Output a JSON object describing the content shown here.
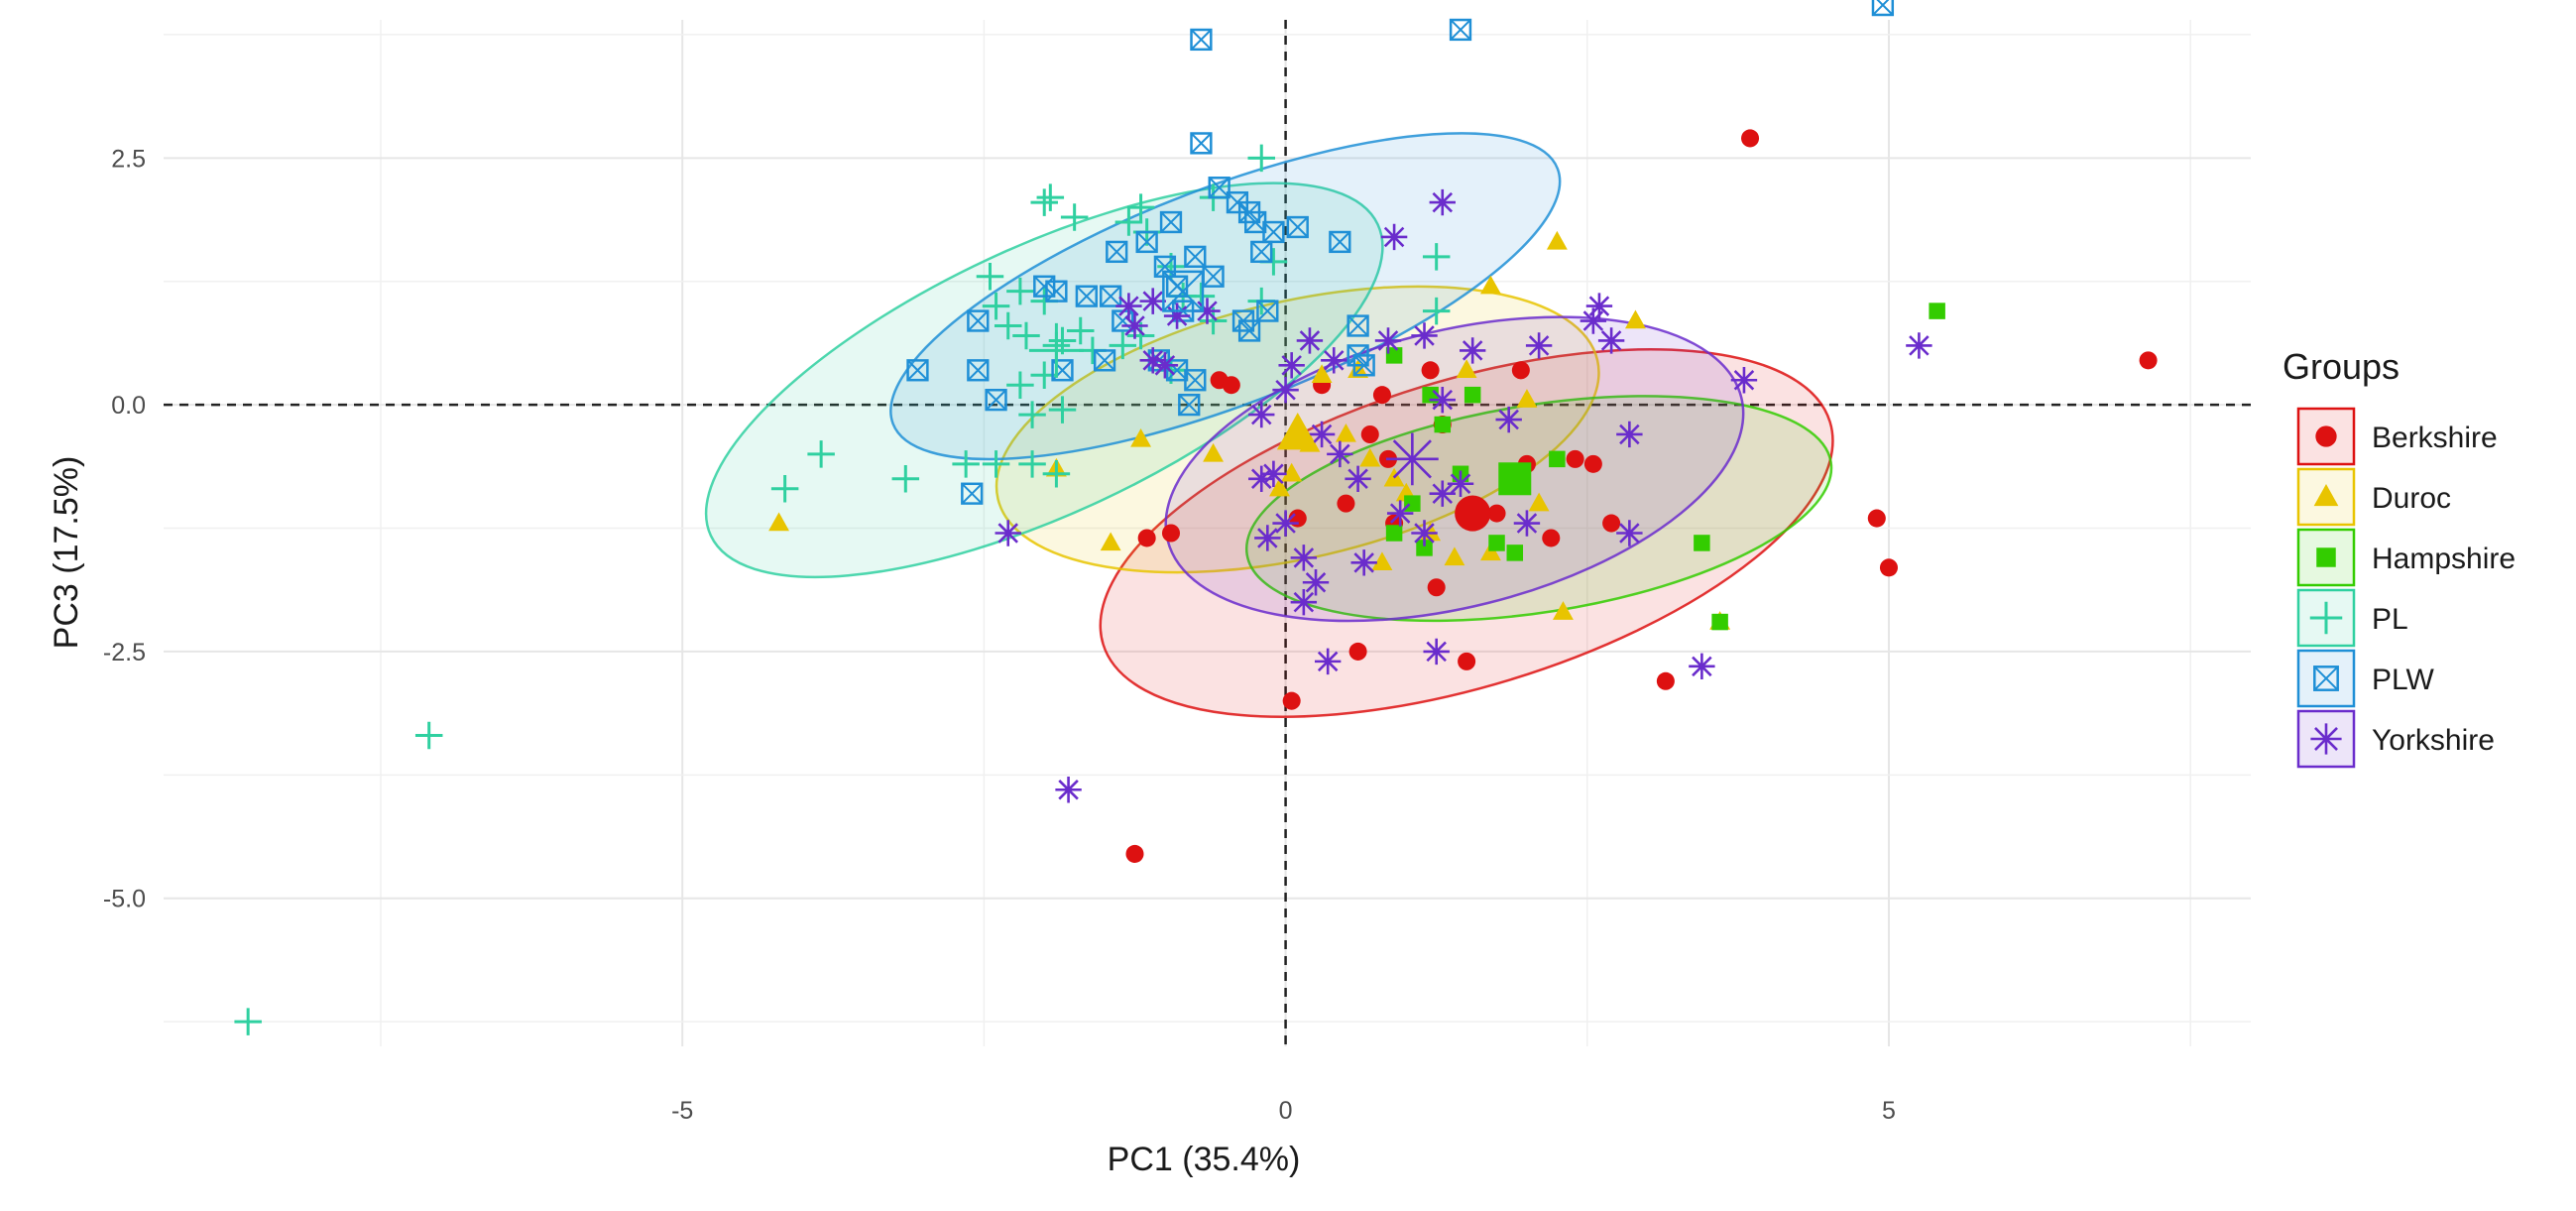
{
  "chart_data": {
    "type": "scatter",
    "xlabel": "PC1 (35.4%)",
    "ylabel": "PC3 (17.5%)",
    "xlim": [
      -9.3,
      8.0
    ],
    "ylim": [
      -6.5,
      3.9
    ],
    "x_ticks": [
      -5,
      0,
      5
    ],
    "x_tick_labels": [
      "-5",
      "0",
      "5"
    ],
    "y_ticks": [
      2.5,
      0.0,
      -2.5,
      -5.0
    ],
    "y_tick_labels": [
      "2.5",
      "0.0",
      "-2.5",
      "-5.0"
    ],
    "grid": true,
    "reference_lines": {
      "x": 0,
      "y": 0,
      "style": "dashed"
    },
    "legend": {
      "title": "Groups",
      "position": "right"
    },
    "series": [
      {
        "name": "Berkshire",
        "color": "#dd1111",
        "marker": "circle",
        "centroid": [
          1.55,
          -1.1
        ],
        "ellipse": {
          "cx": 1.5,
          "cy": -1.3,
          "rx": 3.15,
          "ry": 1.55,
          "angle": 17
        },
        "points": [
          [
            3.85,
            2.7
          ],
          [
            7.15,
            0.45
          ],
          [
            4.9,
            -1.15
          ],
          [
            5.0,
            -1.65
          ],
          [
            3.15,
            -2.8
          ],
          [
            2.7,
            -1.2
          ],
          [
            2.2,
            -1.35
          ],
          [
            1.75,
            -1.1
          ],
          [
            1.5,
            -2.6
          ],
          [
            1.25,
            -1.85
          ],
          [
            0.9,
            -1.2
          ],
          [
            0.6,
            -2.5
          ],
          [
            0.1,
            -1.15
          ],
          [
            0.05,
            -3.0
          ],
          [
            0.5,
            -1.0
          ],
          [
            0.7,
            -0.3
          ],
          [
            0.85,
            -0.55
          ],
          [
            -0.55,
            0.25
          ],
          [
            -0.45,
            0.2
          ],
          [
            -1.15,
            -1.35
          ],
          [
            -0.95,
            -1.3
          ],
          [
            -1.25,
            -4.55
          ],
          [
            2.4,
            -0.55
          ],
          [
            1.3,
            -0.2
          ],
          [
            1.95,
            0.35
          ],
          [
            2.0,
            -0.6
          ],
          [
            1.2,
            0.35
          ],
          [
            0.3,
            0.2
          ],
          [
            0.8,
            0.1
          ],
          [
            2.55,
            -0.6
          ]
        ]
      },
      {
        "name": "Duroc",
        "color": "#e8c400",
        "marker": "triangle",
        "centroid": [
          0.1,
          -0.3
        ],
        "ellipse": {
          "cx": 0.1,
          "cy": -0.25,
          "rx": 2.55,
          "ry": 1.3,
          "angle": 13
        },
        "points": [
          [
            2.25,
            1.65
          ],
          [
            1.7,
            1.2
          ],
          [
            2.9,
            0.85
          ],
          [
            -4.2,
            -1.2
          ],
          [
            -1.45,
            -1.4
          ],
          [
            -1.9,
            -0.65
          ],
          [
            -1.2,
            -0.35
          ],
          [
            -0.6,
            -0.5
          ],
          [
            0.2,
            -0.4
          ],
          [
            0.5,
            -0.3
          ],
          [
            0.7,
            -0.55
          ],
          [
            0.9,
            -0.75
          ],
          [
            1.0,
            -0.9
          ],
          [
            1.4,
            -1.55
          ],
          [
            1.7,
            -1.5
          ],
          [
            2.3,
            -2.1
          ],
          [
            3.6,
            -2.2
          ],
          [
            2.0,
            0.05
          ],
          [
            1.5,
            0.35
          ],
          [
            0.6,
            0.35
          ],
          [
            0.3,
            0.3
          ],
          [
            0.05,
            -0.7
          ],
          [
            -0.05,
            -0.85
          ],
          [
            1.2,
            -1.3
          ],
          [
            0.8,
            -1.6
          ],
          [
            2.1,
            -1.0
          ]
        ]
      },
      {
        "name": "Hampshire",
        "color": "#33cc00",
        "marker": "square",
        "centroid": [
          1.9,
          -0.75
        ],
        "ellipse": {
          "cx": 2.1,
          "cy": -1.05,
          "rx": 2.45,
          "ry": 1.05,
          "angle": 9
        },
        "points": [
          [
            5.4,
            0.95
          ],
          [
            3.45,
            -1.4
          ],
          [
            3.6,
            -2.2
          ],
          [
            2.25,
            -0.55
          ],
          [
            1.9,
            -1.5
          ],
          [
            1.75,
            -1.4
          ],
          [
            1.3,
            -0.2
          ],
          [
            1.55,
            0.1
          ],
          [
            1.45,
            -0.7
          ],
          [
            1.15,
            -1.45
          ],
          [
            0.9,
            -1.3
          ],
          [
            0.9,
            0.5
          ],
          [
            1.2,
            0.1
          ],
          [
            1.05,
            -1.0
          ]
        ]
      },
      {
        "name": "PL",
        "color": "#2fd0a0",
        "marker": "plus",
        "centroid": [
          -1.9,
          0.55
        ],
        "ellipse": {
          "cx": -2.0,
          "cy": 0.25,
          "rx": 3.05,
          "ry": 1.35,
          "angle": 25
        },
        "points": [
          [
            -8.6,
            -6.25
          ],
          [
            -7.1,
            -3.35
          ],
          [
            -4.15,
            -0.85
          ],
          [
            -3.85,
            -0.5
          ],
          [
            -3.15,
            -0.75
          ],
          [
            -2.65,
            -0.6
          ],
          [
            -2.4,
            -0.6
          ],
          [
            -2.1,
            -0.6
          ],
          [
            -2.0,
            0.3
          ],
          [
            -1.9,
            0.6
          ],
          [
            -1.85,
            0.65
          ],
          [
            -1.7,
            0.75
          ],
          [
            -2.0,
            2.05
          ],
          [
            -1.95,
            2.1
          ],
          [
            -1.75,
            1.9
          ],
          [
            -1.3,
            1.85
          ],
          [
            -1.2,
            2.0
          ],
          [
            -1.15,
            1.75
          ],
          [
            -0.95,
            1.4
          ],
          [
            -0.85,
            1.1
          ],
          [
            -0.7,
            1.1
          ],
          [
            -0.6,
            2.1
          ],
          [
            -0.2,
            2.5
          ],
          [
            -0.1,
            1.45
          ],
          [
            1.25,
            1.5
          ],
          [
            -2.45,
            1.3
          ],
          [
            -2.2,
            1.15
          ],
          [
            -2.0,
            1.05
          ],
          [
            -2.4,
            1.0
          ],
          [
            -2.3,
            0.8
          ],
          [
            -2.15,
            0.7
          ],
          [
            -1.6,
            0.55
          ],
          [
            -1.35,
            0.6
          ],
          [
            -1.2,
            0.7
          ],
          [
            -2.2,
            0.2
          ],
          [
            -1.85,
            -0.05
          ],
          [
            -2.1,
            -0.1
          ],
          [
            -1.9,
            -0.7
          ],
          [
            -0.95,
            0.35
          ],
          [
            -0.6,
            0.85
          ],
          [
            -0.2,
            1.05
          ],
          [
            1.25,
            0.95
          ]
        ]
      },
      {
        "name": "PLW",
        "color": "#1f8fd6",
        "marker": "boxed-x",
        "centroid": [
          -0.85,
          1.15
        ],
        "ellipse": {
          "cx": -0.5,
          "cy": 1.1,
          "rx": 2.95,
          "ry": 1.1,
          "angle": 21
        },
        "points": [
          [
            4.95,
            4.05
          ],
          [
            1.45,
            3.8
          ],
          [
            -0.7,
            3.7
          ],
          [
            -0.7,
            2.65
          ],
          [
            -0.55,
            2.2
          ],
          [
            -0.4,
            2.05
          ],
          [
            -0.3,
            1.95
          ],
          [
            -0.25,
            1.85
          ],
          [
            -0.2,
            1.55
          ],
          [
            -0.1,
            1.75
          ],
          [
            0.1,
            1.8
          ],
          [
            0.45,
            1.65
          ],
          [
            -0.95,
            1.85
          ],
          [
            -1.15,
            1.65
          ],
          [
            -1.4,
            1.55
          ],
          [
            -1.45,
            1.1
          ],
          [
            -1.65,
            1.1
          ],
          [
            -1.9,
            1.15
          ],
          [
            -2.0,
            1.2
          ],
          [
            -1.35,
            0.85
          ],
          [
            -1.0,
            1.4
          ],
          [
            -0.9,
            1.2
          ],
          [
            -0.6,
            1.3
          ],
          [
            -0.85,
            0.95
          ],
          [
            -0.3,
            0.75
          ],
          [
            -2.55,
            0.85
          ],
          [
            -2.55,
            0.35
          ],
          [
            -3.05,
            0.35
          ],
          [
            -2.4,
            0.05
          ],
          [
            -1.85,
            0.35
          ],
          [
            -1.5,
            0.45
          ],
          [
            -1.05,
            0.45
          ],
          [
            -0.9,
            0.35
          ],
          [
            -0.75,
            0.25
          ],
          [
            -2.6,
            -0.9
          ],
          [
            -0.8,
            0.0
          ],
          [
            0.6,
            0.8
          ],
          [
            0.6,
            0.5
          ],
          [
            0.65,
            0.4
          ],
          [
            -0.35,
            0.85
          ],
          [
            -0.15,
            0.95
          ],
          [
            -0.75,
            1.5
          ]
        ]
      },
      {
        "name": "Yorkshire",
        "color": "#6a2ccc",
        "marker": "star",
        "centroid": [
          1.05,
          -0.55
        ],
        "ellipse": {
          "cx": 1.4,
          "cy": -0.65,
          "rx": 2.45,
          "ry": 1.4,
          "angle": 14
        },
        "points": [
          [
            1.3,
            2.05
          ],
          [
            0.9,
            1.7
          ],
          [
            -1.3,
            1.0
          ],
          [
            -1.1,
            1.05
          ],
          [
            -1.25,
            0.8
          ],
          [
            -0.9,
            0.9
          ],
          [
            -0.65,
            0.95
          ],
          [
            -1.1,
            0.45
          ],
          [
            -1.0,
            0.4
          ],
          [
            -2.3,
            -1.3
          ],
          [
            -1.8,
            -3.9
          ],
          [
            0.35,
            -2.6
          ],
          [
            1.25,
            -2.5
          ],
          [
            3.45,
            -2.65
          ],
          [
            2.85,
            -1.3
          ],
          [
            5.25,
            0.6
          ],
          [
            3.8,
            0.25
          ],
          [
            2.55,
            0.85
          ],
          [
            2.6,
            1.0
          ],
          [
            2.7,
            0.65
          ],
          [
            2.1,
            0.6
          ],
          [
            1.55,
            0.55
          ],
          [
            1.3,
            0.05
          ],
          [
            1.15,
            0.7
          ],
          [
            0.85,
            0.65
          ],
          [
            0.4,
            0.45
          ],
          [
            0.05,
            0.4
          ],
          [
            -0.1,
            -0.7
          ],
          [
            0.0,
            -1.2
          ],
          [
            -0.15,
            -1.35
          ],
          [
            0.15,
            -1.55
          ],
          [
            0.25,
            -1.8
          ],
          [
            0.15,
            -2.0
          ],
          [
            0.65,
            -1.6
          ],
          [
            0.95,
            -1.1
          ],
          [
            1.15,
            -1.3
          ],
          [
            1.3,
            -0.9
          ],
          [
            1.45,
            -0.8
          ],
          [
            0.6,
            -0.75
          ],
          [
            0.45,
            -0.5
          ],
          [
            0.3,
            -0.3
          ],
          [
            -0.2,
            -0.75
          ],
          [
            2.0,
            -1.2
          ],
          [
            2.85,
            -0.3
          ],
          [
            0.2,
            0.65
          ],
          [
            0.0,
            0.15
          ],
          [
            -0.2,
            -0.1
          ],
          [
            1.85,
            -0.15
          ]
        ]
      }
    ]
  }
}
